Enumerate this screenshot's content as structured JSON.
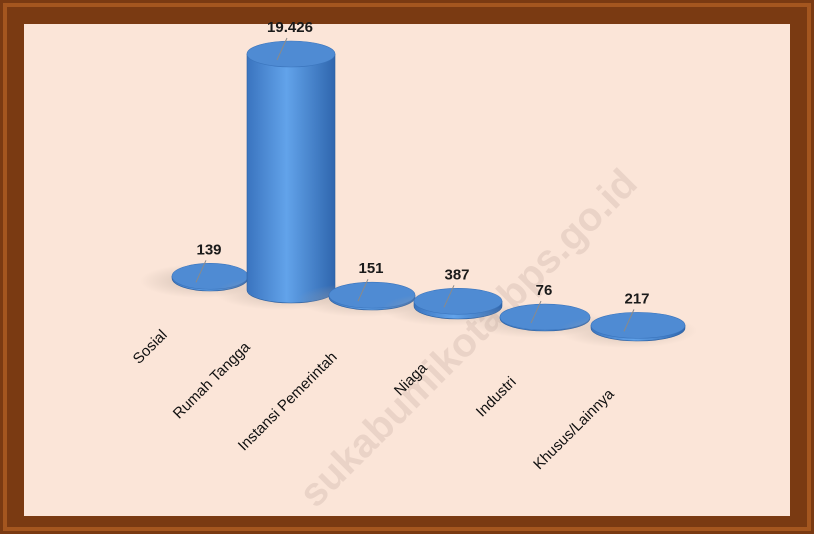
{
  "chart_data": {
    "type": "bar3d-cylinder",
    "categories": [
      "Sosial",
      "Rumah Tangga",
      "Instansi Pemerintah",
      "Niaga",
      "Industri",
      "Khusus/Lainnya"
    ],
    "values": [
      139,
      19426,
      151,
      387,
      76,
      217
    ],
    "value_labels": [
      "139",
      "19.426",
      "151",
      "387",
      "76",
      "217"
    ],
    "color": "#4a86cf",
    "watermark": "sukabumikota.bps.go.id"
  }
}
